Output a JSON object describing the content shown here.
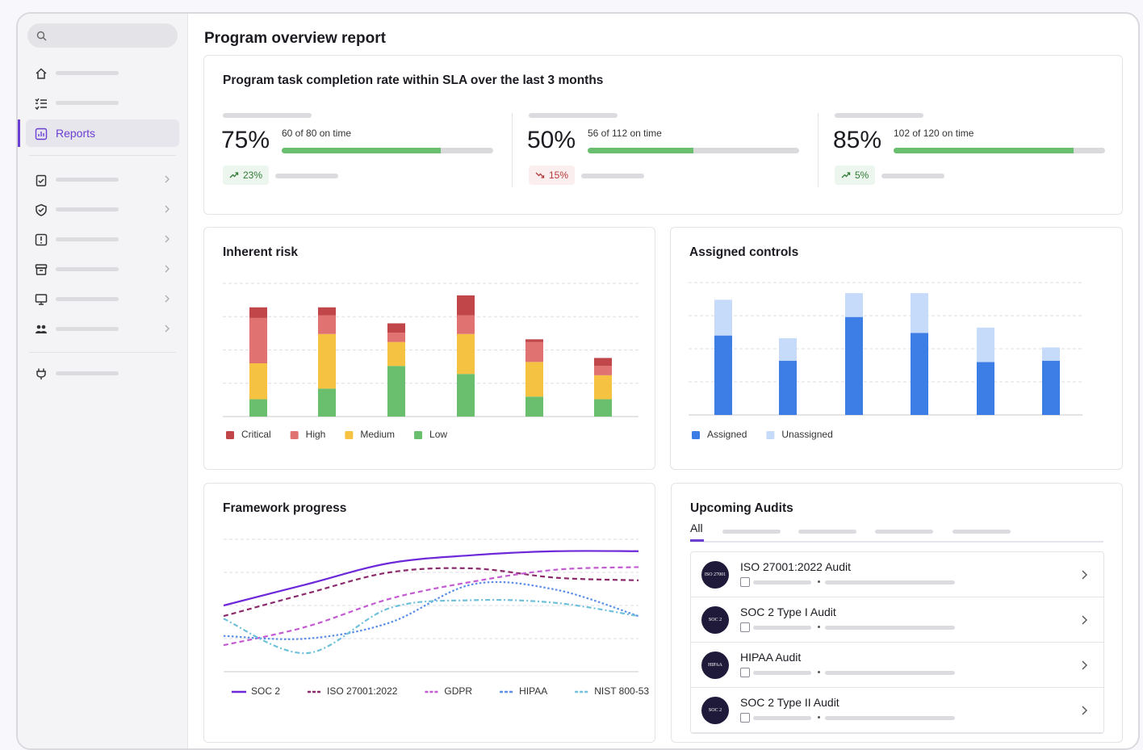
{
  "header": {
    "title": "Program overview report"
  },
  "sidebar": {
    "active_item": "Reports"
  },
  "sla": {
    "title": "Program task completion rate within SLA over the last 3 months",
    "cards": [
      {
        "rate": {
          "value": 75,
          "label": "75%"
        },
        "detail": "60 of 80 on time",
        "change": "23%",
        "trend": "up"
      },
      {
        "rate": {
          "value": 50,
          "label": "50%"
        },
        "detail": "56 of 112 on time",
        "change": "15%",
        "trend": "down"
      },
      {
        "rate": {
          "value": 85,
          "label": "85%"
        },
        "detail": "102 of 120 on time",
        "change": "5%",
        "trend": "up"
      }
    ]
  },
  "chart_data": [
    {
      "type": "bar",
      "stacked": true,
      "reverse_stack": true,
      "title": "Inherent risk",
      "categories": [
        null,
        null,
        null,
        null,
        null,
        null
      ],
      "ylim": [
        0,
        100
      ],
      "yticks": [
        0,
        25,
        50,
        75,
        100
      ],
      "grid": true,
      "series": [
        {
          "name": "Critical",
          "color": "#c0464a",
          "values": [
            8,
            6,
            7,
            15,
            2,
            6
          ]
        },
        {
          "name": "High",
          "color": "#e07272",
          "values": [
            34,
            14,
            7,
            14,
            15,
            7
          ]
        },
        {
          "name": "Medium",
          "color": "#f5c242",
          "values": [
            27,
            41,
            18,
            30,
            26,
            18
          ]
        },
        {
          "name": "Low",
          "color": "#6abf6f",
          "values": [
            13,
            21,
            38,
            32,
            15,
            13
          ]
        }
      ]
    },
    {
      "type": "bar",
      "stacked": true,
      "reverse_stack": false,
      "title": "Assigned controls",
      "categories": [
        null,
        null,
        null,
        null,
        null,
        null
      ],
      "ylim": [
        0,
        100
      ],
      "yticks": [
        0,
        25,
        50,
        75,
        100
      ],
      "grid": true,
      "series": [
        {
          "name": "Assigned",
          "color": "#3d7ee6",
          "values": [
            60,
            41,
            74,
            62,
            40,
            41
          ]
        },
        {
          "name": "Unassigned",
          "color": "#c6dbfa",
          "values": [
            27,
            17,
            18,
            30,
            26,
            10
          ]
        }
      ]
    },
    {
      "type": "line",
      "title": "Framework progress",
      "categories": [
        null,
        null,
        null,
        null,
        null,
        null
      ],
      "ylim": [
        0,
        100
      ],
      "yticks": [
        0,
        25,
        50,
        75,
        100
      ],
      "grid": true,
      "series": [
        {
          "name": "SOC 2",
          "color": "#6d28d9",
          "dash": "solid",
          "values": [
            50,
            66,
            82,
            88,
            91,
            91
          ]
        },
        {
          "name": "ISO 27001:2022",
          "color": "#8b2a6b",
          "dash": "dashed",
          "values": [
            42,
            59,
            75,
            78,
            71,
            69
          ]
        },
        {
          "name": "GDPR",
          "color": "#c35bd1",
          "dash": "dashed",
          "values": [
            20,
            34,
            55,
            68,
            77,
            79
          ]
        },
        {
          "name": "HIPAA",
          "color": "#5b8ee6",
          "dash": "dotted",
          "values": [
            27,
            25,
            37,
            66,
            62,
            42
          ]
        },
        {
          "name": "NIST 800-53",
          "color": "#6fc0d9",
          "dash": "dash-dot",
          "values": [
            40,
            14,
            48,
            54,
            52,
            42
          ]
        }
      ]
    }
  ],
  "upcoming_audits": {
    "title": "Upcoming Audits",
    "tab": "All",
    "items": [
      {
        "badge": "ISO 27001",
        "name": "ISO 27001:2022 Audit"
      },
      {
        "badge": "SOC 2",
        "name": "SOC 2 Type I Audit"
      },
      {
        "badge": "HIPAA",
        "name": "HIPAA Audit"
      },
      {
        "badge": "SOC 2",
        "name": "SOC 2 Type II Audit"
      }
    ]
  }
}
